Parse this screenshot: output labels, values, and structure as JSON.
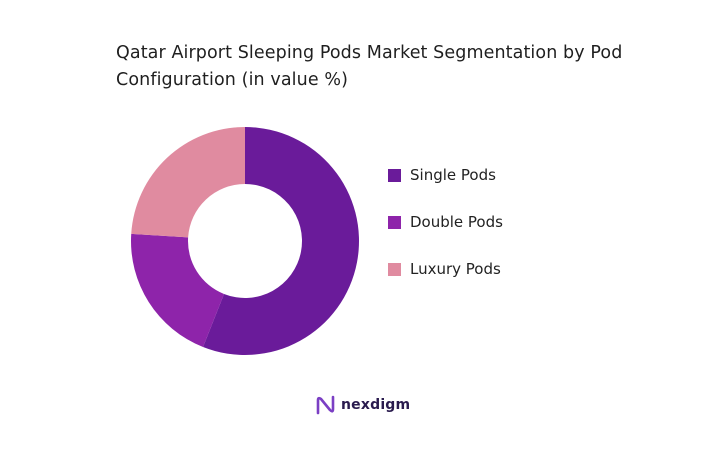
{
  "chart_data": {
    "type": "pie",
    "variant": "donut",
    "title": "Qatar Airport Sleeping Pods Market Segmentation by Pod Configuration (in value %)",
    "categories": [
      "Single Pods",
      "Double Pods",
      "Luxury Pods"
    ],
    "values": [
      56,
      20,
      24
    ],
    "colors": [
      "#6a1b9a",
      "#8e24aa",
      "#e08ba0"
    ],
    "legend_position": "right"
  },
  "brand": {
    "name": "nexdigm",
    "logo_icon": "nexdigm-logo-icon",
    "color": "#2a1b4e"
  }
}
